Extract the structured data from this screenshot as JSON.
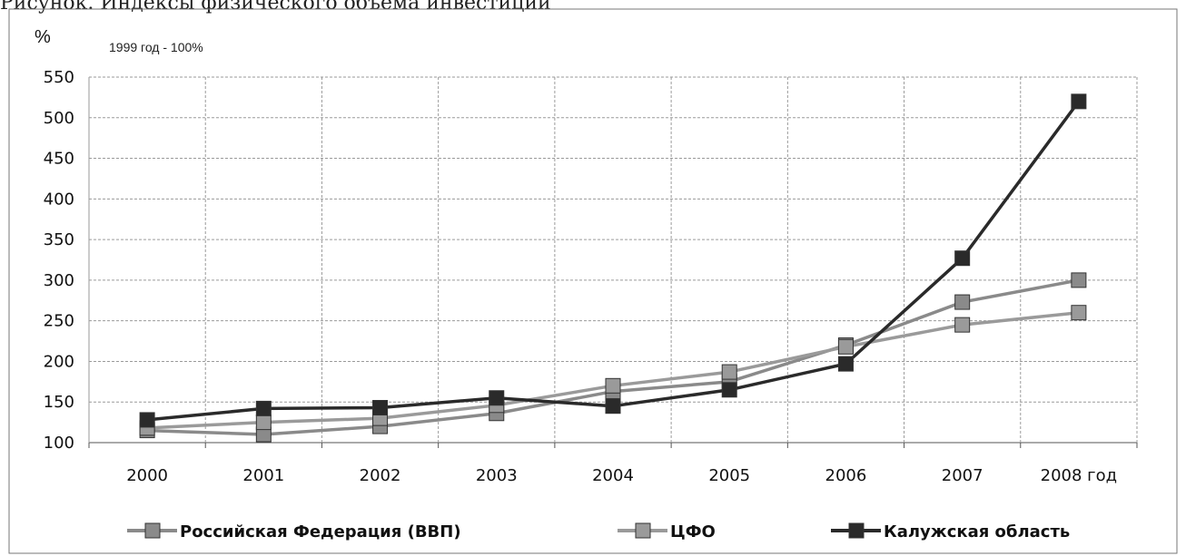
{
  "caption": "Рисунок. Индексы физического объема инвестиций",
  "chart_data": {
    "type": "line",
    "ylabel": "%",
    "note": "1999 год - 100%",
    "categories": [
      "2000",
      "2001",
      "2002",
      "2003",
      "2004",
      "2005",
      "2006",
      "2007",
      "2008 год"
    ],
    "yticks": [
      100,
      150,
      200,
      250,
      300,
      350,
      400,
      450,
      500,
      550
    ],
    "ylim": [
      100,
      550
    ],
    "grid": true,
    "legend_position": "bottom",
    "series": [
      {
        "name": "Российская Федерация (ВВП)",
        "color": "#8a8a8a",
        "values": [
          115,
          110,
          120,
          136,
          163,
          175,
          220,
          273,
          300
        ]
      },
      {
        "name": "ЦФО",
        "color": "#9a9a9a",
        "values": [
          118,
          125,
          130,
          146,
          170,
          187,
          218,
          245,
          260
        ]
      },
      {
        "name": "Калужская область",
        "color": "#2a2a2a",
        "values": [
          128,
          142,
          143,
          155,
          145,
          165,
          197,
          327,
          520
        ]
      }
    ]
  }
}
